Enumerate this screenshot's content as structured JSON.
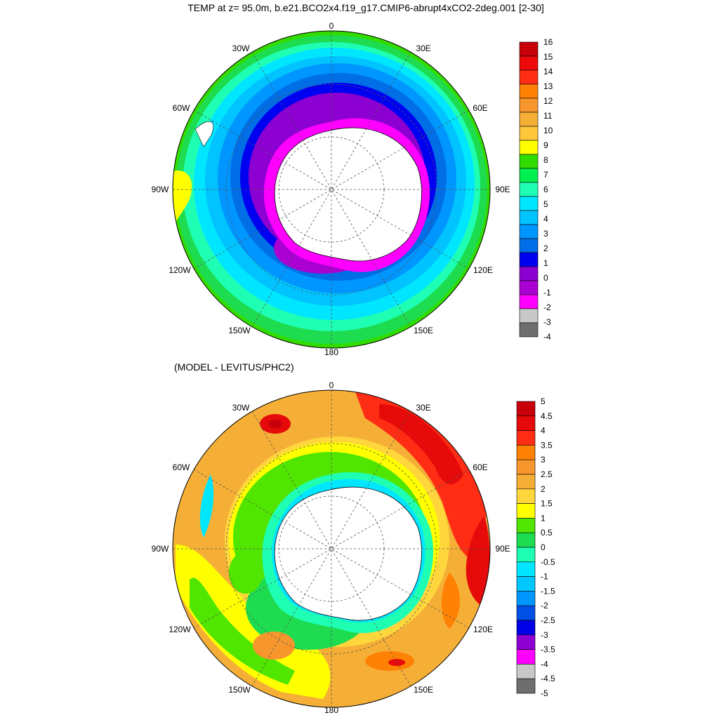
{
  "title": "TEMP at z=  95.0m, b.e21.BCO2x4.f19_g17.CMIP6-abrupt4xCO2-2deg.001 [2-30]",
  "maps": [
    {
      "id": "top",
      "subtitle": "",
      "lon_labels": [
        "0",
        "30E",
        "60E",
        "90E",
        "120E",
        "150E",
        "180",
        "150W",
        "120W",
        "90W",
        "60W",
        "30W"
      ],
      "colorbar": {
        "labels": [
          "16",
          "15",
          "14",
          "13",
          "12",
          "11",
          "10",
          "9",
          "8",
          "7",
          "6",
          "5",
          "4",
          "3",
          "2",
          "1",
          "0",
          "-1",
          "-2",
          "-3",
          "-4"
        ],
        "colors": [
          "#c8000a",
          "#ee0a0a",
          "#ff2d14",
          "#ff8205",
          "#f7962d",
          "#f5af37",
          "#ffc83c",
          "#ffff00",
          "#32dc00",
          "#00f050",
          "#1effb4",
          "#00e6ff",
          "#00c3ff",
          "#0096ff",
          "#006ee6",
          "#0000f0",
          "#8c00d2",
          "#aa00d2",
          "#ff00ff",
          "#c8c8c8",
          "#6e6e6e"
        ]
      }
    },
    {
      "id": "bottom",
      "subtitle": "(MODEL - LEVITUS/PHC2)",
      "lon_labels": [
        "0",
        "30E",
        "60E",
        "90E",
        "120E",
        "150E",
        "180",
        "150W",
        "120W",
        "90W",
        "60W",
        "30W"
      ],
      "colorbar": {
        "labels": [
          "5",
          "4.5",
          "4",
          "3.5",
          "3",
          "2.5",
          "2",
          "1.5",
          "1",
          "0.5",
          "0",
          "-0.5",
          "-1",
          "-1.5",
          "-2",
          "-2.5",
          "-3",
          "-3.5",
          "-4",
          "-4.5",
          "-5"
        ],
        "colors": [
          "#c8000a",
          "#e60a0a",
          "#ff2d14",
          "#ff8205",
          "#f7962d",
          "#f5af37",
          "#ffd73c",
          "#ffff00",
          "#50e600",
          "#1edc50",
          "#1effb4",
          "#00e6ff",
          "#00c8ff",
          "#0096ff",
          "#0050e6",
          "#0000e6",
          "#8c00d2",
          "#ff00ff",
          "#c8c8c8",
          "#6e6e6e"
        ]
      }
    }
  ]
}
